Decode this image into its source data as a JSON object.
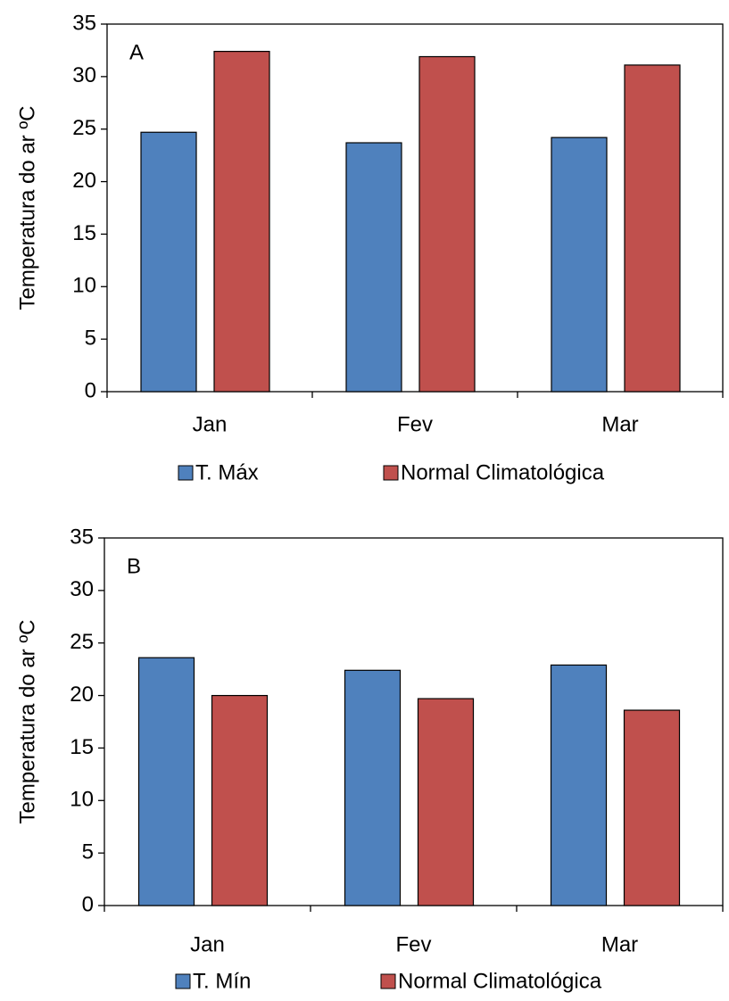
{
  "chart_data": [
    {
      "type": "bar",
      "panel_label": "A",
      "y_label": "Temperatura do ar ºC",
      "categories": [
        "Jan",
        "Fev",
        "Mar"
      ],
      "series": [
        {
          "name": "T. Máx",
          "color": "#4f81bd",
          "values": [
            24.7,
            23.7,
            24.2
          ]
        },
        {
          "name": "Normal Climatológica",
          "color": "#c0504d",
          "values": [
            32.4,
            31.9,
            31.1
          ]
        }
      ],
      "ylim": [
        0,
        35
      ],
      "yticks": [
        0,
        5,
        10,
        15,
        20,
        25,
        30,
        35
      ]
    },
    {
      "type": "bar",
      "panel_label": "B",
      "y_label": "Temperatura do ar ºC",
      "categories": [
        "Jan",
        "Fev",
        "Mar"
      ],
      "series": [
        {
          "name": "T. Mín",
          "color": "#4f81bd",
          "values": [
            23.6,
            22.4,
            22.9
          ]
        },
        {
          "name": "Normal Climatológica",
          "color": "#c0504d",
          "values": [
            20.0,
            19.7,
            18.6
          ]
        }
      ],
      "ylim": [
        0,
        35
      ],
      "yticks": [
        0,
        5,
        10,
        15,
        20,
        25,
        30,
        35
      ]
    }
  ]
}
